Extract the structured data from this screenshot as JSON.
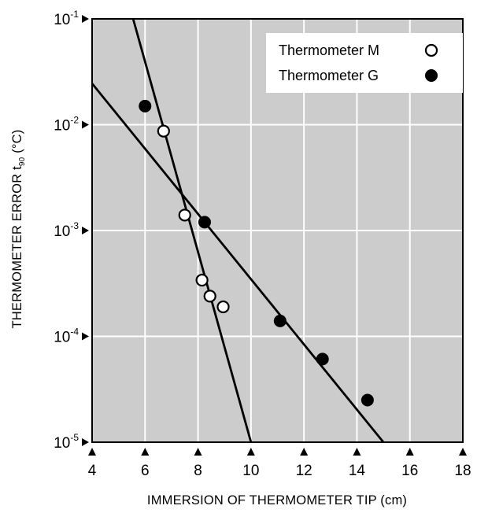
{
  "chart_data": {
    "type": "scatter",
    "xlabel": "IMMERSION OF THERMOMETER TIP (cm)",
    "ylabel_main": "THERMOMETER ERROR t",
    "ylabel_sub": "90",
    "ylabel_unit": " (°C)",
    "xlim": [
      4,
      18
    ],
    "ylim": [
      1e-05,
      0.1
    ],
    "y_scale": "log",
    "grid": true,
    "x_ticks": [
      {
        "value": 4,
        "label": "4"
      },
      {
        "value": 6,
        "label": "6"
      },
      {
        "value": 8,
        "label": "8"
      },
      {
        "value": 10,
        "label": "10"
      },
      {
        "value": 12,
        "label": "12"
      },
      {
        "value": 14,
        "label": "14"
      },
      {
        "value": 16,
        "label": "16"
      },
      {
        "value": 18,
        "label": "18"
      }
    ],
    "y_ticks": [
      {
        "value": 0.1,
        "base": "10",
        "exp": "-1"
      },
      {
        "value": 0.01,
        "base": "10",
        "exp": "-2"
      },
      {
        "value": 0.001,
        "base": "10",
        "exp": "-3"
      },
      {
        "value": 0.0001,
        "base": "10",
        "exp": "-4"
      },
      {
        "value": 1e-05,
        "base": "10",
        "exp": "-5"
      }
    ],
    "legend_position": "top-right",
    "series": [
      {
        "name": "Thermometer M",
        "marker": "open-circle",
        "points": [
          {
            "x": 6.7,
            "y": 0.0087
          },
          {
            "x": 7.5,
            "y": 0.0014
          },
          {
            "x": 8.15,
            "y": 0.00034
          },
          {
            "x": 8.45,
            "y": 0.00024
          },
          {
            "x": 8.95,
            "y": 0.00019
          }
        ],
        "fit_line": [
          {
            "x": 5.55,
            "y": 0.1
          },
          {
            "x": 10.0,
            "y": 1e-05
          }
        ]
      },
      {
        "name": "Thermometer G",
        "marker": "filled-circle",
        "points": [
          {
            "x": 6.0,
            "y": 0.015
          },
          {
            "x": 8.25,
            "y": 0.0012
          },
          {
            "x": 11.1,
            "y": 0.00014
          },
          {
            "x": 12.7,
            "y": 6.1e-05
          },
          {
            "x": 14.4,
            "y": 2.5e-05
          }
        ],
        "fit_line": [
          {
            "x": 4.0,
            "y": 0.0245
          },
          {
            "x": 15.0,
            "y": 1e-05
          }
        ]
      }
    ]
  },
  "colors": {
    "plot_background": "#cccccc",
    "grid": "#ffffff",
    "ink": "#000000"
  }
}
